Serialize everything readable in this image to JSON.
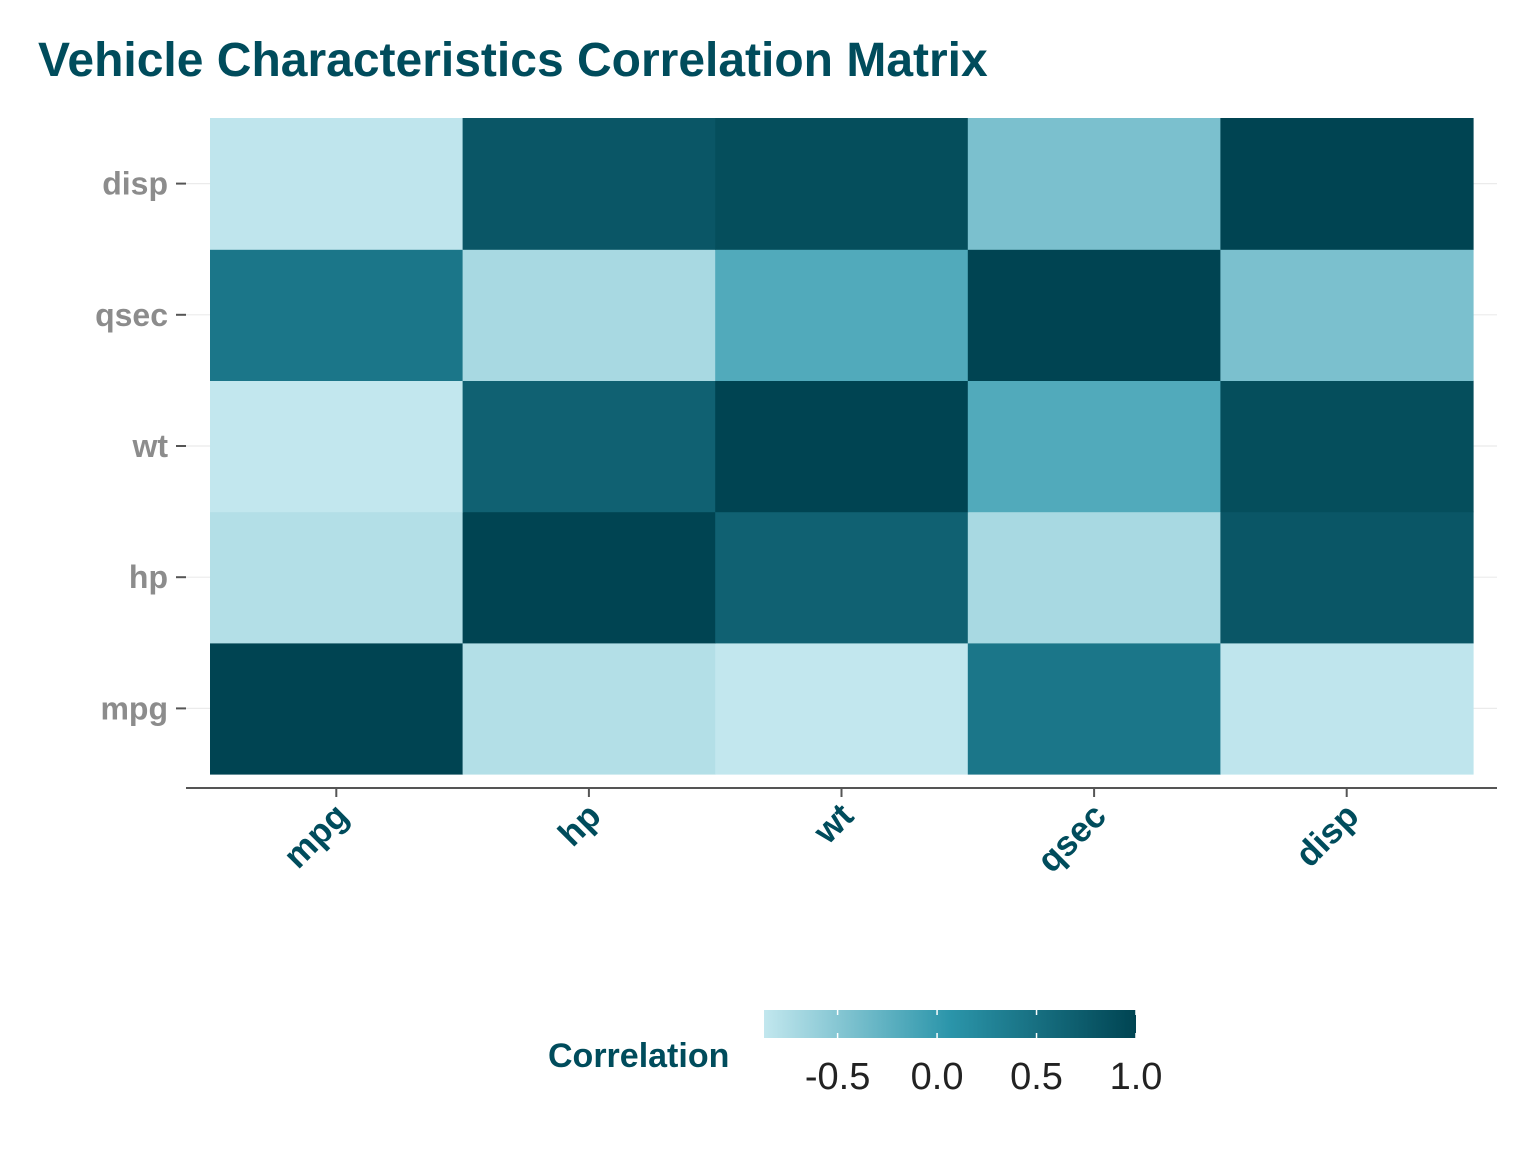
{
  "title": "Vehicle Characteristics Correlation Matrix",
  "colors": {
    "title": "#004c5c",
    "x_tick_label": "#004c5c",
    "y_tick_label": "#8c8c8c",
    "legend_title": "#004c5c",
    "legend_tick_label": "#222222",
    "axis_line": "#555555",
    "gridline": "#ebebeb",
    "scale_low": "#c2e7ee",
    "scale_mid": "#2b95aa",
    "scale_high": "#004452"
  },
  "chart_data": {
    "type": "heatmap",
    "title": "Vehicle Characteristics Correlation Matrix",
    "x_categories": [
      "mpg",
      "hp",
      "wt",
      "qsec",
      "disp"
    ],
    "y_categories": [
      "mpg",
      "hp",
      "wt",
      "qsec",
      "disp"
    ],
    "xlabel": "",
    "ylabel": "",
    "values": [
      [
        1.0,
        -0.78,
        -0.87,
        0.42,
        -0.85
      ],
      [
        -0.78,
        1.0,
        0.66,
        -0.71,
        0.79
      ],
      [
        -0.87,
        0.66,
        1.0,
        -0.17,
        0.89
      ],
      [
        0.42,
        -0.71,
        -0.17,
        1.0,
        -0.43
      ],
      [
        -0.85,
        0.79,
        0.89,
        -0.43,
        1.0
      ]
    ],
    "value_range": [
      -0.87,
      1.0
    ],
    "grid": true,
    "legend": {
      "title": "Correlation",
      "position": "bottom",
      "breaks": [
        "-0.5",
        "0.0",
        "0.5",
        "1.0"
      ],
      "break_values": [
        -0.5,
        0.0,
        0.5,
        1.0
      ]
    }
  }
}
